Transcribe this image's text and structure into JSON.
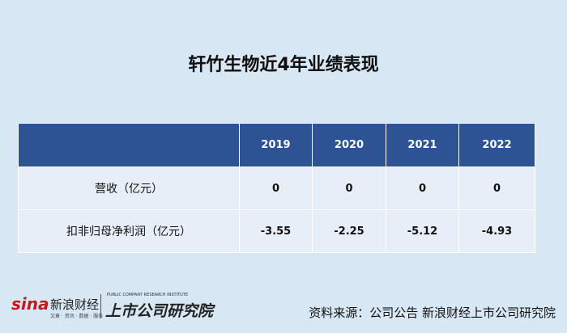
{
  "header": {
    "title": "轩竹生物近4年业绩表现"
  },
  "table": {
    "columns": [
      "2019",
      "2020",
      "2021",
      "2022"
    ],
    "rows": [
      {
        "label": "营收（亿元）",
        "values": [
          0,
          0,
          0,
          0
        ]
      },
      {
        "label": "扣非归母净利润（亿元）",
        "values": [
          -3.55,
          -2.25,
          -5.12,
          -4.93
        ]
      }
    ]
  },
  "footer": {
    "logo": "sina",
    "brand": "新浪财经",
    "brand_sub": "文章 · 资讯 · 数据 · 服务",
    "institute": "上市公司研究院",
    "institute_en": "PUBLIC COMPANY RESEARCH INSTITUTE",
    "source": "资料来源：公司公告 新浪财经上市公司研究院"
  }
}
